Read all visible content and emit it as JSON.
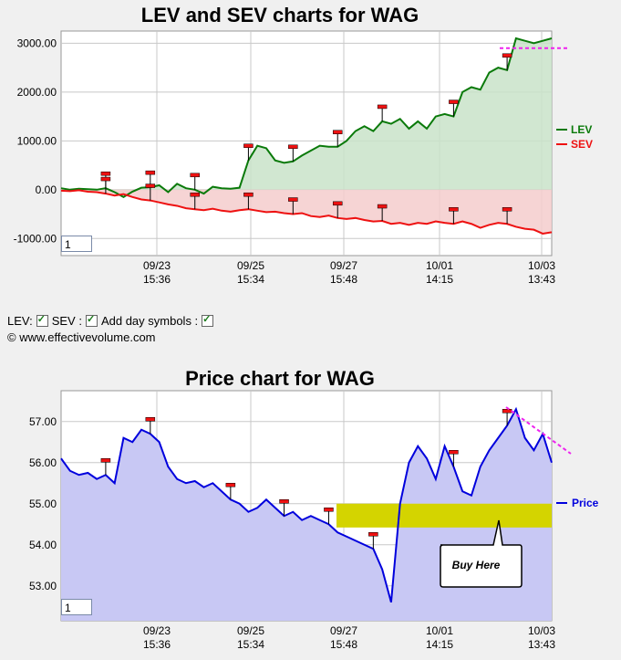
{
  "chart_data": [
    {
      "type": "line",
      "title": "LEV and SEV charts for WAG",
      "y_ticks": [
        "3000.00",
        "2000.00",
        "1000.00",
        "0.00",
        "-1000.00"
      ],
      "y_tick_values": [
        3000,
        2000,
        1000,
        0,
        -1000
      ],
      "ylim": [
        -1350,
        3250
      ],
      "x_ticks": [
        {
          "date": "09/23",
          "time": "15:36"
        },
        {
          "date": "09/25",
          "time": "15:34"
        },
        {
          "date": "09/27",
          "time": "15:48"
        },
        {
          "date": "10/01",
          "time": "14:15"
        },
        {
          "date": "10/03",
          "time": "13:43"
        }
      ],
      "series": [
        {
          "name": "LEV",
          "color": "#0a7a0a",
          "fill": "#c9e3c9",
          "values": [
            30,
            0,
            20,
            10,
            0,
            30,
            -50,
            -150,
            -40,
            40,
            50,
            90,
            -50,
            120,
            30,
            0,
            -80,
            60,
            30,
            20,
            40,
            600,
            900,
            850,
            600,
            550,
            580,
            700,
            800,
            900,
            880,
            880,
            1000,
            1200,
            1300,
            1200,
            1400,
            1350,
            1450,
            1250,
            1400,
            1250,
            1500,
            1550,
            1500,
            2000,
            2100,
            2050,
            2400,
            2500,
            2450,
            3100,
            3050,
            3000,
            3050,
            3100
          ]
        },
        {
          "name": "SEV",
          "color": "#ee1111",
          "fill": "#f4cccc",
          "values": [
            -20,
            -30,
            -10,
            -40,
            -50,
            -80,
            -120,
            -90,
            -150,
            -200,
            -220,
            -260,
            -300,
            -330,
            -380,
            -400,
            -420,
            -390,
            -430,
            -450,
            -420,
            -400,
            -430,
            -460,
            -450,
            -480,
            -500,
            -480,
            -540,
            -560,
            -530,
            -580,
            -600,
            -580,
            -620,
            -650,
            -640,
            -700,
            -680,
            -720,
            -680,
            -700,
            -650,
            -680,
            -700,
            -650,
            -700,
            -780,
            -720,
            -680,
            -700,
            -760,
            -800,
            -820,
            -900,
            -870
          ]
        }
      ],
      "reference_line": {
        "value": 2900,
        "color": "#ee22ee"
      }
    },
    {
      "type": "area",
      "title": "Price chart for WAG",
      "y_ticks": [
        "57.00",
        "56.00",
        "55.00",
        "54.00",
        "53.00"
      ],
      "y_tick_values": [
        57,
        56,
        55,
        54,
        53
      ],
      "ylim": [
        52.15,
        57.75
      ],
      "x_ticks": [
        {
          "date": "09/23",
          "time": "15:36"
        },
        {
          "date": "09/25",
          "time": "15:34"
        },
        {
          "date": "09/27",
          "time": "15:48"
        },
        {
          "date": "10/01",
          "time": "14:15"
        },
        {
          "date": "10/03",
          "time": "13:43"
        }
      ],
      "series": [
        {
          "name": "Price",
          "color": "#0000dd",
          "fill": "#c8c8f4",
          "values": [
            56.1,
            55.8,
            55.7,
            55.75,
            55.6,
            55.7,
            55.5,
            56.6,
            56.5,
            56.8,
            56.7,
            56.5,
            55.9,
            55.6,
            55.5,
            55.55,
            55.4,
            55.5,
            55.3,
            55.1,
            55.0,
            54.8,
            54.9,
            55.1,
            54.9,
            54.7,
            54.8,
            54.6,
            54.7,
            54.6,
            54.5,
            54.3,
            54.2,
            54.1,
            54.0,
            53.9,
            53.4,
            52.6,
            55.0,
            56.0,
            56.4,
            56.1,
            55.6,
            56.4,
            55.9,
            55.3,
            55.2,
            55.9,
            56.3,
            56.6,
            56.9,
            57.3,
            56.6,
            56.3,
            56.7,
            56.0
          ]
        }
      ],
      "buy_zone": {
        "from": 54.42,
        "to": 55.0,
        "color": "#d4d400"
      },
      "annotation": "Buy Here",
      "trend_line_color": "#ee22ee"
    }
  ],
  "legend": {
    "lev": "LEV",
    "sev": "SEV",
    "price": "Price"
  },
  "controls": {
    "lev_label": "LEV:",
    "sev_label": "SEV :",
    "day_symbols_label": "Add day symbols :"
  },
  "zoom_value": "1",
  "copyright": "© www.effectivevolume.com"
}
